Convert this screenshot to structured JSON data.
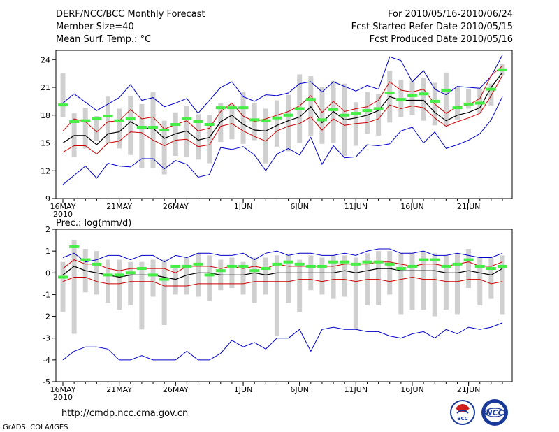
{
  "header": {
    "title": "DERF/NCC/BCC Monthly Forecast",
    "member_size": "Member Size=40",
    "variable": "Mean Surf. Temp.: °C",
    "period": "For 2010/05/16-2010/06/24",
    "fcst_started": "Fcst Started Refer Date 2010/05/15",
    "fcst_produced": "Fcst Produced Date 2010/05/16"
  },
  "footer": {
    "url": "http://cmdp.ncc.cma.gov.cn",
    "credit": "GrADS: COLA/IGES",
    "logo_left": "BCC",
    "logo_right": "NCC"
  },
  "colors": {
    "extreme": "#0000cc",
    "spread": "#cc0000",
    "mean": "#000000",
    "observed": "#44ee44",
    "box": "#d0d0d0"
  },
  "chart_data": [
    {
      "type": "line",
      "title": "Mean Surf. Temp.: °C",
      "x_tick_labels": [
        "16MAY",
        "21MAY",
        "26MAY",
        "1JUN",
        "6JUN",
        "11JUN",
        "16JUN",
        "21JUN"
      ],
      "x_tick_days": [
        1,
        6,
        11,
        17,
        22,
        27,
        32,
        37
      ],
      "year_label": "2010",
      "ylim": [
        9,
        25
      ],
      "yticks": [
        9,
        12,
        15,
        18,
        21,
        24
      ],
      "x": [
        1,
        2,
        3,
        4,
        5,
        6,
        7,
        8,
        9,
        10,
        11,
        12,
        13,
        14,
        15,
        16,
        17,
        18,
        19,
        20,
        21,
        22,
        23,
        24,
        25,
        26,
        27,
        28,
        29,
        30,
        31,
        32,
        33,
        34,
        35,
        36,
        37,
        38,
        39,
        40
      ],
      "series": [
        {
          "name": "max",
          "values": [
            10.5,
            11.5,
            12.5,
            11.2,
            12.8,
            12.5,
            12.4,
            13.3,
            13.3,
            12.2,
            13.1,
            12.7,
            11.3,
            11.6,
            14.5,
            14.3,
            14.6,
            13.7,
            12.0,
            13.8,
            14.4,
            13.7,
            15.6,
            12.7,
            14.7,
            13.4,
            13.5,
            14.8,
            14.7,
            14.9,
            16.3,
            16.7,
            15.0,
            16.2,
            14.4,
            14.8,
            15.3,
            16.0,
            17.5,
            20.0
          ]
        },
        {
          "name": "min",
          "values": [
            19.3,
            20.3,
            19.4,
            18.5,
            19.2,
            19.9,
            21.3,
            19.6,
            19.9,
            18.9,
            19.3,
            19.8,
            18.2,
            19.6,
            21.0,
            21.6,
            20.0,
            19.5,
            20.2,
            20.1,
            20.4,
            21.4,
            21.6,
            20.5,
            21.6,
            21.1,
            20.6,
            21.2,
            20.8,
            24.3,
            23.9,
            21.6,
            22.8,
            20.8,
            20.2,
            21.1,
            21.0,
            20.9,
            22.2,
            24.5
          ]
        },
        {
          "name": "p10",
          "values": [
            14.0,
            14.7,
            14.7,
            13.8,
            15.0,
            15.2,
            16.2,
            16.1,
            15.3,
            14.7,
            15.3,
            15.4,
            14.6,
            14.8,
            16.8,
            17.1,
            16.3,
            15.7,
            15.2,
            16.3,
            16.8,
            17.1,
            17.8,
            16.4,
            17.6,
            16.9,
            17.1,
            17.2,
            17.6,
            19.1,
            18.7,
            19.0,
            18.8,
            17.7,
            16.8,
            17.3,
            17.7,
            18.2,
            20.1,
            22.3
          ]
        },
        {
          "name": "p90",
          "values": [
            16.3,
            17.6,
            17.3,
            16.2,
            17.3,
            17.4,
            18.6,
            17.6,
            17.8,
            16.5,
            17.0,
            17.4,
            16.3,
            16.6,
            18.4,
            19.3,
            17.9,
            17.3,
            17.6,
            18.0,
            18.4,
            19.0,
            20.1,
            18.3,
            19.5,
            18.4,
            18.7,
            18.9,
            19.6,
            21.6,
            20.7,
            20.5,
            20.8,
            19.2,
            18.2,
            18.9,
            19.1,
            19.8,
            22.3,
            23.3
          ]
        },
        {
          "name": "mean",
          "values": [
            15.0,
            15.8,
            15.8,
            14.8,
            16.0,
            16.2,
            17.3,
            16.6,
            16.6,
            15.5,
            16.0,
            16.3,
            15.3,
            15.6,
            17.3,
            18.0,
            17.0,
            16.4,
            16.3,
            16.9,
            17.4,
            17.8,
            18.9,
            17.2,
            18.4,
            17.5,
            17.7,
            18.0,
            18.5,
            20.0,
            19.6,
            19.6,
            19.6,
            18.3,
            17.4,
            18.0,
            18.3,
            18.8,
            21.0,
            22.6
          ]
        },
        {
          "name": "observed",
          "values": [
            19.1,
            17.3,
            17.4,
            17.6,
            17.9,
            17.4,
            17.6,
            16.7,
            16.7,
            16.4,
            17.0,
            17.6,
            17.3,
            17.0,
            18.8,
            18.8,
            18.8,
            17.5,
            17.4,
            17.7,
            18.0,
            18.7,
            19.7,
            17.5,
            18.6,
            18.0,
            18.2,
            18.5,
            18.7,
            20.4,
            19.7,
            20.1,
            20.3,
            19.5,
            20.7,
            18.8,
            19.2,
            19.3,
            20.8,
            22.9
          ]
        },
        {
          "name": "box_low",
          "values": [
            17.8,
            13.5,
            14.4,
            15.2,
            15.0,
            14.4,
            13.7,
            12.3,
            12.3,
            11.6,
            13.6,
            13.5,
            13.2,
            12.8,
            15.1,
            15.4,
            14.9,
            15.3,
            12.8,
            14.6,
            14.1,
            15.0,
            15.8,
            14.9,
            15.0,
            13.6,
            14.7,
            16.0,
            15.8,
            17.2,
            17.8,
            18.0,
            17.4,
            16.9,
            16.8,
            17.5,
            18.7,
            18.3,
            19.0,
            22.3
          ]
        },
        {
          "name": "box_high",
          "values": [
            22.5,
            18.2,
            18.8,
            17.9,
            20.0,
            18.7,
            20.1,
            19.2,
            20.5,
            17.4,
            18.3,
            19.0,
            18.1,
            18.0,
            19.3,
            19.2,
            20.5,
            19.3,
            18.7,
            19.6,
            20.2,
            22.4,
            22.2,
            21.0,
            21.7,
            21.4,
            19.4,
            20.5,
            20.3,
            22.8,
            21.8,
            21.7,
            22.0,
            21.5,
            22.6,
            21.1,
            20.8,
            20.8,
            21.4,
            23.5
          ]
        }
      ]
    },
    {
      "type": "line",
      "title": "Prec.: log(mm/d)",
      "x_tick_labels": [
        "16MAY",
        "21MAY",
        "26MAY",
        "1JUN",
        "6JUN",
        "11JUN",
        "16JUN",
        "21JUN"
      ],
      "x_tick_days": [
        1,
        6,
        11,
        17,
        22,
        27,
        32,
        37
      ],
      "year_label": "2010",
      "ylim": [
        -5,
        2
      ],
      "yticks": [
        -5,
        -4,
        -3,
        -2,
        -1,
        0,
        1,
        2
      ],
      "x": [
        1,
        2,
        3,
        4,
        5,
        6,
        7,
        8,
        9,
        10,
        11,
        12,
        13,
        14,
        15,
        16,
        17,
        18,
        19,
        20,
        21,
        22,
        23,
        24,
        25,
        26,
        27,
        28,
        29,
        30,
        31,
        32,
        33,
        34,
        35,
        36,
        37,
        38,
        39,
        40
      ],
      "series": [
        {
          "name": "max",
          "values": [
            -4.0,
            -3.6,
            -3.4,
            -3.4,
            -3.5,
            -4.0,
            -4.0,
            -3.8,
            -4.0,
            -4.0,
            -4.0,
            -3.6,
            -4.0,
            -4.0,
            -3.7,
            -3.1,
            -3.4,
            -3.2,
            -3.5,
            -3.0,
            -3.0,
            -2.6,
            -3.6,
            -2.6,
            -2.5,
            -2.6,
            -2.6,
            -2.7,
            -2.7,
            -2.9,
            -3.0,
            -2.8,
            -2.7,
            -3.0,
            -2.6,
            -2.8,
            -2.5,
            -2.6,
            -2.5,
            -2.3
          ]
        },
        {
          "name": "min",
          "values": [
            0.7,
            0.9,
            0.5,
            0.6,
            0.8,
            0.8,
            0.6,
            0.8,
            0.8,
            0.5,
            0.8,
            0.7,
            0.9,
            0.9,
            0.8,
            0.8,
            0.9,
            0.6,
            0.9,
            1.0,
            0.8,
            0.9,
            0.9,
            0.8,
            0.8,
            0.9,
            0.8,
            1.0,
            1.1,
            1.1,
            0.9,
            0.9,
            1.0,
            0.8,
            0.8,
            0.9,
            0.8,
            0.7,
            0.7,
            0.9
          ]
        },
        {
          "name": "p10",
          "values": [
            -0.4,
            -0.2,
            -0.2,
            -0.4,
            -0.5,
            -0.5,
            -0.4,
            -0.4,
            -0.4,
            -0.6,
            -0.6,
            -0.6,
            -0.5,
            -0.5,
            -0.5,
            -0.5,
            -0.5,
            -0.4,
            -0.4,
            -0.4,
            -0.4,
            -0.3,
            -0.3,
            -0.4,
            -0.3,
            -0.3,
            -0.4,
            -0.3,
            -0.3,
            -0.4,
            -0.3,
            -0.2,
            -0.3,
            -0.3,
            -0.4,
            -0.4,
            -0.3,
            -0.3,
            -0.5,
            -0.4
          ]
        },
        {
          "name": "p90",
          "values": [
            0.2,
            0.6,
            0.4,
            0.4,
            0.2,
            0.1,
            0.2,
            0.2,
            0.2,
            0.2,
            0.0,
            0.3,
            0.3,
            0.3,
            0.2,
            0.3,
            0.2,
            0.3,
            0.2,
            0.4,
            0.3,
            0.3,
            0.3,
            0.3,
            0.3,
            0.4,
            0.4,
            0.4,
            0.5,
            0.5,
            0.4,
            0.3,
            0.4,
            0.4,
            0.3,
            0.4,
            0.5,
            0.3,
            0.3,
            0.5
          ]
        },
        {
          "name": "mean",
          "values": [
            -0.1,
            0.3,
            0.1,
            0.0,
            -0.1,
            -0.2,
            -0.1,
            -0.1,
            -0.1,
            -0.2,
            -0.3,
            -0.1,
            0.0,
            0.0,
            -0.1,
            -0.1,
            -0.1,
            0.0,
            -0.1,
            0.0,
            0.0,
            0.0,
            0.0,
            0.0,
            0.0,
            0.1,
            0.0,
            0.1,
            0.2,
            0.2,
            0.1,
            0.1,
            0.1,
            0.1,
            0.0,
            0.0,
            0.1,
            0.0,
            -0.1,
            0.2
          ]
        },
        {
          "name": "observed",
          "values": [
            -0.2,
            1.2,
            0.6,
            0.4,
            -0.1,
            -0.1,
            0.0,
            0.2,
            -0.1,
            -0.3,
            0.3,
            0.3,
            0.4,
            -0.1,
            0.1,
            0.3,
            0.3,
            0.1,
            0.2,
            0.4,
            0.5,
            0.4,
            0.3,
            0.3,
            0.5,
            0.5,
            0.4,
            0.5,
            0.5,
            0.4,
            0.2,
            0.3,
            0.6,
            0.6,
            0.3,
            0.4,
            0.6,
            0.3,
            0.2,
            0.3
          ]
        },
        {
          "name": "box_low",
          "values": [
            -1.8,
            -2.8,
            -0.9,
            -1.0,
            -1.4,
            -1.7,
            -1.5,
            -2.6,
            -1.1,
            -2.4,
            -1.0,
            -1.0,
            -1.1,
            -1.3,
            -0.8,
            -0.7,
            -1.0,
            -1.4,
            -1.0,
            -2.9,
            -1.4,
            -1.8,
            -0.8,
            -1.0,
            -1.2,
            -1.1,
            -2.6,
            -1.5,
            -1.5,
            -1.0,
            -1.9,
            -1.7,
            -1.7,
            -2.0,
            -1.7,
            -1.9,
            -0.7,
            -1.5,
            -1.2,
            -1.9
          ]
        },
        {
          "name": "box_high",
          "values": [
            0.5,
            1.5,
            1.1,
            1.0,
            0.6,
            0.6,
            0.5,
            0.5,
            0.6,
            0.6,
            0.2,
            0.7,
            0.9,
            0.8,
            0.6,
            0.7,
            0.5,
            0.7,
            0.7,
            0.8,
            0.8,
            0.6,
            0.8,
            0.7,
            0.8,
            0.8,
            0.7,
            0.9,
            1.0,
            1.0,
            0.9,
            0.9,
            1.0,
            0.9,
            0.8,
            0.9,
            1.1,
            0.7,
            0.7,
            0.8
          ]
        }
      ]
    }
  ]
}
